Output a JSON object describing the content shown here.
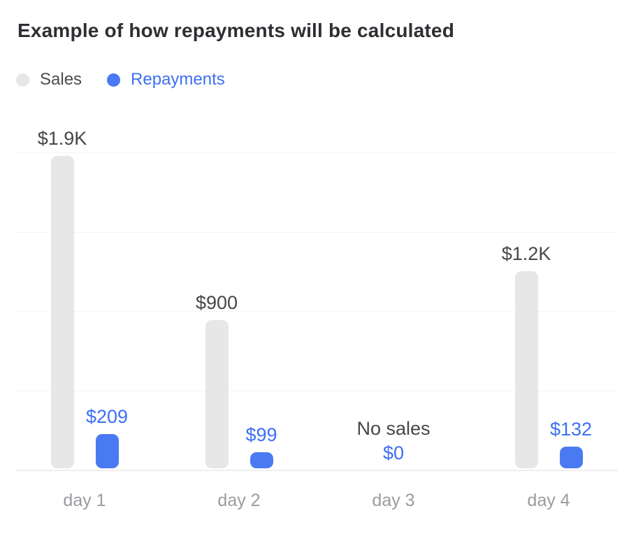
{
  "title": "Example of how repayments will be calculated",
  "legend": {
    "items": [
      {
        "label": "Sales"
      },
      {
        "label": "Repayments"
      }
    ]
  },
  "colors": {
    "sales_bar": "#e7e7e8",
    "repayments_bar": "#4a7af2",
    "repayments_text": "#3d6ff2",
    "sales_value_text": "#46474a",
    "legend_sales_text": "#4b4c4f",
    "day_label_text": "#9b9ba0",
    "title_text": "#2d2f33",
    "gridline": "#f4f4f5",
    "baseline": "#efeff0"
  },
  "chart_data": {
    "type": "bar",
    "categories": [
      "day 1",
      "day 2",
      "day 3",
      "day 4"
    ],
    "series": [
      {
        "name": "Sales",
        "values": [
          1900,
          900,
          0,
          1200
        ],
        "value_labels": [
          "$1.9K",
          "$900",
          "",
          "$1.2K"
        ]
      },
      {
        "name": "Repayments",
        "values": [
          209,
          99,
          0,
          132
        ],
        "value_labels": [
          "$209",
          "$99",
          "$0",
          "$132"
        ]
      }
    ],
    "empty_category": {
      "index": 2,
      "label": "No sales",
      "value_label": "$0"
    },
    "ylim": [
      0,
      2000
    ],
    "grid": true,
    "grid_intervals": 4,
    "legend_position": "top-left"
  }
}
